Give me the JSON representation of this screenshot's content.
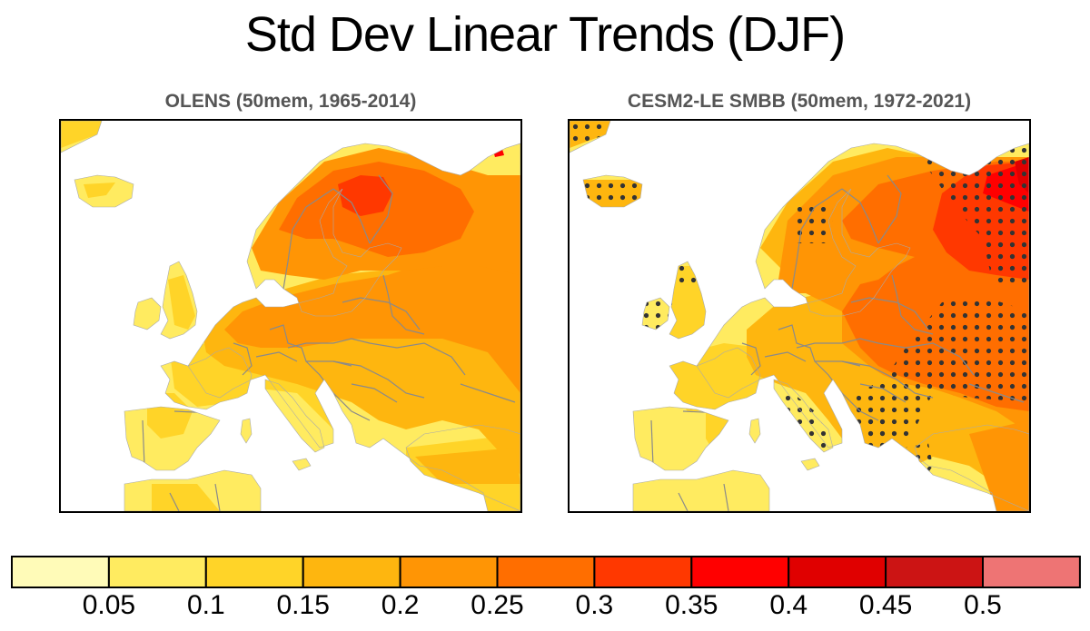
{
  "title": "Std Dev Linear Trends (DJF)",
  "chart_data": {
    "type": "heatmap",
    "title": "Std Dev Linear Trends (DJF)",
    "season": "DJF",
    "region": "Europe",
    "panels": [
      {
        "id": "left",
        "title": "OLENS (50mem, 1965-2014)",
        "stippling": false,
        "summary": {
          "Iberia": "0.05-0.15",
          "France": "0.1-0.15",
          "British Isles": "0.05-0.15",
          "Central Europe": "0.15-0.25",
          "Scandinavia": "0.15-0.3",
          "Gulf of Bothnia / northern Finland max": "0.3-0.35",
          "Western Russia": "0.2-0.3",
          "Turkey": "0.1-0.2"
        }
      },
      {
        "id": "right",
        "title": "CESM2-LE SMBB (50mem, 1972-2021)",
        "stippling": true,
        "summary": {
          "Iberia": "0.05-0.15",
          "France": "0.1-0.15",
          "British Isles": "0.1-0.15",
          "Central Europe": "0.15-0.2",
          "Scandinavia": "0.15-0.25",
          "Eastern Europe / Ukraine": "0.25-0.3",
          "Western Russia": "0.3-0.35",
          "Barents / Arctic coast max": "0.35-0.45",
          "Turkey": "0.15-0.2"
        }
      }
    ],
    "colorbar": {
      "levels": [
        0.05,
        0.1,
        0.15,
        0.2,
        0.25,
        0.3,
        0.35,
        0.4,
        0.45,
        0.5
      ],
      "tick_labels": [
        "0.05",
        "0.1",
        "0.15",
        "0.2",
        "0.25",
        "0.3",
        "0.35",
        "0.4",
        "0.45",
        "0.5"
      ],
      "colors": [
        "#FFFBB8",
        "#FFEB60",
        "#FFD428",
        "#FEB60F",
        "#FF9505",
        "#FF6E00",
        "#FF3800",
        "#FF0000",
        "#E00000",
        "#CC1414",
        "#EE7474"
      ],
      "orientation": "horizontal",
      "placement": "bottom"
    }
  }
}
